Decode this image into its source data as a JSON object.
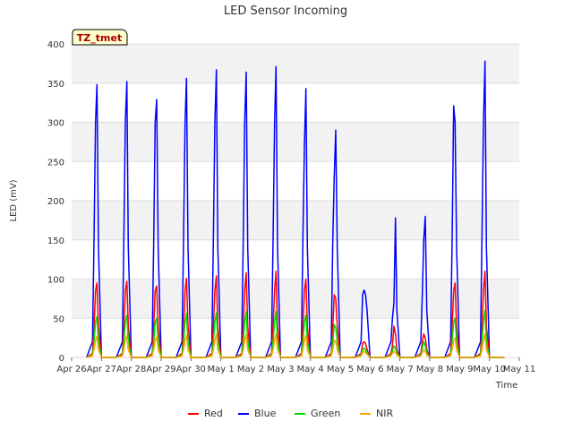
{
  "chart_data": {
    "type": "line",
    "title": "LED Sensor Incoming",
    "xlabel": "Time",
    "ylabel": "LED (mV)",
    "badge": "TZ_tmet",
    "ylim": [
      0,
      400
    ],
    "yticks": [
      0,
      50,
      100,
      150,
      200,
      250,
      300,
      350,
      400
    ],
    "xlim": [
      0,
      15
    ],
    "x_unit": "days since Apr 26",
    "xtick_labels": [
      "Apr 26",
      "Apr 27",
      "Apr 28",
      "Apr 29",
      "Apr 30",
      "May 1",
      "May 2",
      "May 3",
      "May 4",
      "May 5",
      "May 6",
      "May 7",
      "May 8",
      "May 9",
      "May 10",
      "May 11"
    ],
    "legend": [
      "Red",
      "Blue",
      "Green",
      "NIR"
    ],
    "legend_position": "bottom-center",
    "grid": true,
    "series": [
      {
        "name": "Red",
        "color": "#ff0000",
        "daily_peaks": [
          95,
          97,
          91,
          101,
          104,
          108,
          110,
          100,
          80,
          20,
          40,
          30,
          95,
          110
        ],
        "x": [
          0.5,
          0.7,
          0.75,
          0.8,
          0.85,
          0.9,
          1.0,
          1.5,
          1.7,
          1.75,
          1.8,
          1.85,
          1.9,
          2.0,
          2.5,
          2.7,
          2.75,
          2.8,
          2.85,
          2.9,
          3.0,
          3.5,
          3.7,
          3.75,
          3.8,
          3.85,
          3.9,
          4.0,
          4.5,
          4.7,
          4.75,
          4.8,
          4.85,
          4.9,
          5.0,
          5.5,
          5.7,
          5.75,
          5.8,
          5.85,
          5.9,
          6.0,
          6.5,
          6.7,
          6.75,
          6.8,
          6.85,
          6.9,
          7.0,
          7.5,
          7.7,
          7.75,
          7.8,
          7.85,
          7.9,
          8.0,
          8.5,
          8.7,
          8.75,
          8.8,
          8.85,
          8.9,
          9.0,
          9.5,
          9.7,
          9.75,
          9.8,
          9.85,
          9.9,
          10.0,
          10.5,
          10.7,
          10.75,
          10.8,
          10.85,
          10.9,
          11.0,
          11.5,
          11.7,
          11.75,
          11.8,
          11.85,
          11.9,
          12.0,
          12.5,
          12.7,
          12.75,
          12.8,
          12.85,
          12.9,
          13.0,
          13.5,
          13.7,
          13.75,
          13.8,
          13.85,
          13.9,
          14.0,
          14.5
        ],
        "values": [
          0,
          5,
          40,
          85,
          95,
          40,
          0,
          0,
          5,
          40,
          85,
          97,
          40,
          0,
          0,
          5,
          40,
          85,
          91,
          40,
          0,
          0,
          5,
          40,
          85,
          101,
          40,
          0,
          0,
          5,
          40,
          85,
          104,
          40,
          0,
          0,
          5,
          40,
          85,
          108,
          40,
          0,
          0,
          5,
          40,
          85,
          110,
          40,
          0,
          0,
          5,
          40,
          85,
          100,
          40,
          0,
          0,
          5,
          40,
          80,
          75,
          40,
          0,
          0,
          5,
          18,
          20,
          18,
          10,
          0,
          0,
          5,
          15,
          40,
          30,
          10,
          0,
          0,
          5,
          20,
          30,
          25,
          10,
          0,
          0,
          5,
          40,
          85,
          95,
          40,
          0,
          0,
          5,
          40,
          85,
          110,
          40,
          0,
          0
        ]
      },
      {
        "name": "Blue",
        "color": "#0000ff",
        "daily_peaks": [
          348,
          352,
          329,
          356,
          367,
          364,
          371,
          343,
          290,
          86,
          178,
          180,
          321,
          378
        ],
        "x": [
          0.5,
          0.7,
          0.75,
          0.8,
          0.85,
          0.9,
          1.0,
          1.5,
          1.7,
          1.75,
          1.8,
          1.85,
          1.9,
          2.0,
          2.5,
          2.7,
          2.75,
          2.8,
          2.85,
          2.9,
          3.0,
          3.5,
          3.7,
          3.75,
          3.8,
          3.85,
          3.9,
          4.0,
          4.5,
          4.7,
          4.75,
          4.8,
          4.85,
          4.9,
          5.0,
          5.5,
          5.7,
          5.75,
          5.8,
          5.85,
          5.9,
          6.0,
          6.5,
          6.7,
          6.75,
          6.8,
          6.85,
          6.9,
          7.0,
          7.5,
          7.7,
          7.75,
          7.8,
          7.85,
          7.9,
          8.0,
          8.5,
          8.7,
          8.75,
          8.8,
          8.85,
          8.9,
          9.0,
          9.5,
          9.7,
          9.75,
          9.8,
          9.85,
          9.9,
          10.0,
          10.5,
          10.7,
          10.75,
          10.8,
          10.85,
          10.9,
          11.0,
          11.5,
          11.7,
          11.75,
          11.8,
          11.85,
          11.9,
          12.0,
          12.5,
          12.7,
          12.75,
          12.8,
          12.85,
          12.9,
          13.0,
          13.5,
          13.7,
          13.75,
          13.8,
          13.85,
          13.9,
          14.0,
          14.5
        ],
        "values": [
          0,
          20,
          150,
          300,
          348,
          140,
          0,
          0,
          20,
          150,
          300,
          352,
          140,
          0,
          0,
          20,
          150,
          300,
          329,
          140,
          0,
          0,
          20,
          150,
          300,
          356,
          140,
          0,
          0,
          20,
          150,
          300,
          367,
          140,
          0,
          0,
          20,
          150,
          300,
          364,
          140,
          0,
          0,
          20,
          150,
          300,
          371,
          140,
          0,
          0,
          20,
          150,
          270,
          343,
          140,
          0,
          0,
          20,
          150,
          230,
          290,
          140,
          0,
          0,
          20,
          80,
          86,
          80,
          60,
          0,
          0,
          20,
          50,
          70,
          178,
          60,
          0,
          0,
          20,
          80,
          150,
          180,
          60,
          0,
          0,
          20,
          150,
          321,
          300,
          140,
          0,
          0,
          20,
          150,
          300,
          378,
          140,
          0,
          0
        ]
      },
      {
        "name": "Green",
        "color": "#00dd00",
        "daily_peaks": [
          52,
          54,
          50,
          56,
          57,
          58,
          59,
          54,
          42,
          12,
          15,
          20,
          50,
          60
        ],
        "x": [
          0.5,
          0.7,
          0.75,
          0.8,
          0.85,
          0.9,
          1.0,
          1.5,
          1.7,
          1.75,
          1.8,
          1.85,
          1.9,
          2.0,
          2.5,
          2.7,
          2.75,
          2.8,
          2.85,
          2.9,
          3.0,
          3.5,
          3.7,
          3.75,
          3.8,
          3.85,
          3.9,
          4.0,
          4.5,
          4.7,
          4.75,
          4.8,
          4.85,
          4.9,
          5.0,
          5.5,
          5.7,
          5.75,
          5.8,
          5.85,
          5.9,
          6.0,
          6.5,
          6.7,
          6.75,
          6.8,
          6.85,
          6.9,
          7.0,
          7.5,
          7.7,
          7.75,
          7.8,
          7.85,
          7.9,
          8.0,
          8.5,
          8.7,
          8.75,
          8.8,
          8.85,
          8.9,
          9.0,
          9.5,
          9.7,
          9.75,
          9.8,
          9.85,
          9.9,
          10.0,
          10.5,
          10.7,
          10.75,
          10.8,
          10.85,
          10.9,
          11.0,
          11.5,
          11.7,
          11.75,
          11.8,
          11.85,
          11.9,
          12.0,
          12.5,
          12.7,
          12.75,
          12.8,
          12.85,
          12.9,
          13.0,
          13.5,
          13.7,
          13.75,
          13.8,
          13.85,
          13.9,
          14.0,
          14.5
        ],
        "values": [
          0,
          3,
          20,
          45,
          52,
          20,
          0,
          0,
          3,
          20,
          45,
          54,
          20,
          0,
          0,
          3,
          20,
          45,
          50,
          20,
          0,
          0,
          3,
          20,
          45,
          56,
          20,
          0,
          0,
          3,
          20,
          45,
          57,
          20,
          0,
          0,
          3,
          20,
          45,
          58,
          20,
          0,
          0,
          3,
          20,
          45,
          59,
          20,
          0,
          0,
          3,
          20,
          45,
          54,
          20,
          0,
          0,
          3,
          20,
          42,
          38,
          20,
          0,
          0,
          3,
          10,
          12,
          10,
          6,
          0,
          0,
          3,
          8,
          15,
          12,
          6,
          0,
          0,
          3,
          12,
          20,
          15,
          6,
          0,
          0,
          3,
          20,
          45,
          50,
          20,
          0,
          0,
          3,
          20,
          45,
          60,
          20,
          0,
          0
        ]
      },
      {
        "name": "NIR",
        "color": "#ffa500",
        "daily_peaks": [
          27,
          28,
          26,
          28,
          29,
          29,
          30,
          28,
          22,
          8,
          8,
          10,
          25,
          30
        ],
        "x": [
          0.5,
          0.7,
          0.75,
          0.8,
          0.85,
          0.9,
          1.0,
          1.5,
          1.7,
          1.75,
          1.8,
          1.85,
          1.9,
          2.0,
          2.5,
          2.7,
          2.75,
          2.8,
          2.85,
          2.9,
          3.0,
          3.5,
          3.7,
          3.75,
          3.8,
          3.85,
          3.9,
          4.0,
          4.5,
          4.7,
          4.75,
          4.8,
          4.85,
          4.9,
          5.0,
          5.5,
          5.7,
          5.75,
          5.8,
          5.85,
          5.9,
          6.0,
          6.5,
          6.7,
          6.75,
          6.8,
          6.85,
          6.9,
          7.0,
          7.5,
          7.7,
          7.75,
          7.8,
          7.85,
          7.9,
          8.0,
          8.5,
          8.7,
          8.75,
          8.8,
          8.85,
          8.9,
          9.0,
          9.5,
          9.7,
          9.75,
          9.8,
          9.85,
          9.9,
          10.0,
          10.5,
          10.7,
          10.75,
          10.8,
          10.85,
          10.9,
          11.0,
          11.5,
          11.7,
          11.75,
          11.8,
          11.85,
          11.9,
          12.0,
          12.5,
          12.7,
          12.75,
          12.8,
          12.85,
          12.9,
          13.0,
          13.5,
          13.7,
          13.75,
          13.8,
          13.85,
          13.9,
          14.0,
          14.5
        ],
        "values": [
          0,
          2,
          10,
          22,
          27,
          10,
          0,
          0,
          2,
          10,
          22,
          28,
          10,
          0,
          0,
          2,
          10,
          22,
          26,
          10,
          0,
          0,
          2,
          10,
          22,
          28,
          10,
          0,
          0,
          2,
          10,
          22,
          29,
          10,
          0,
          0,
          2,
          10,
          22,
          29,
          10,
          0,
          0,
          2,
          10,
          22,
          30,
          10,
          0,
          0,
          2,
          10,
          22,
          28,
          10,
          0,
          0,
          2,
          10,
          22,
          20,
          10,
          0,
          0,
          2,
          6,
          8,
          6,
          4,
          0,
          0,
          2,
          5,
          8,
          6,
          3,
          0,
          0,
          2,
          6,
          10,
          8,
          3,
          0,
          0,
          2,
          10,
          22,
          25,
          10,
          0,
          0,
          2,
          10,
          22,
          30,
          10,
          0,
          0
        ]
      }
    ]
  }
}
